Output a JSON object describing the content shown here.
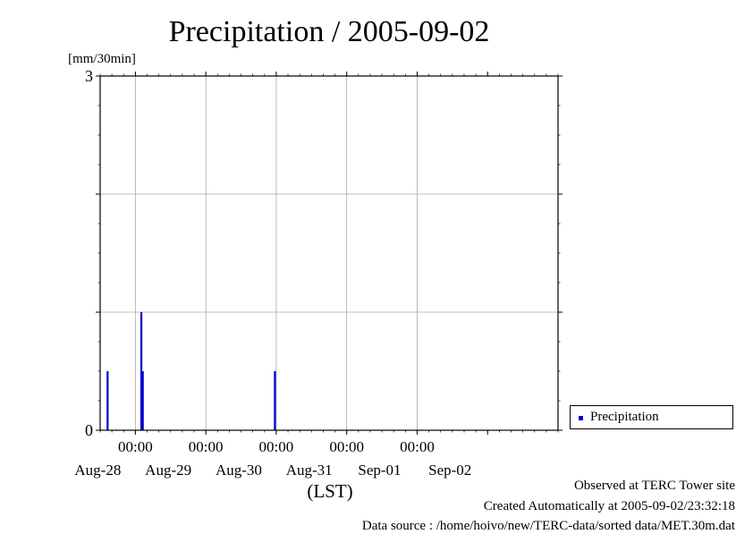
{
  "title": "Precipitation / 2005-09-02",
  "y_unit": "[mm/30min]",
  "x_unit": "(LST)",
  "legend": {
    "label": "Precipitation",
    "color": "#0000cc"
  },
  "footer": {
    "observed": "Observed at TERC Tower site",
    "created": "Created Automatically at 2005-09-02/23:32:18",
    "source": "Data source : /home/hoivo/new/TERC-data/sorted  data/MET.30m.dat"
  },
  "chart_data": {
    "type": "bar",
    "title": "Precipitation / 2005-09-02",
    "ylabel": "[mm/30min]",
    "xlabel": "(LST)",
    "ylim": [
      0,
      3
    ],
    "y_ticks": [
      {
        "value": 0,
        "label": "0"
      },
      {
        "value": 3,
        "label": "3"
      }
    ],
    "y_grid": [
      1,
      2
    ],
    "xlim": [
      "2005-08-27 12:00",
      "2005-09-02 24:00"
    ],
    "x_ticks": [
      {
        "time": "2005-08-28 00:00",
        "hour_label": "00:00",
        "date_label": "Aug-28"
      },
      {
        "time": "2005-08-29 00:00",
        "hour_label": "00:00",
        "date_label": "Aug-29"
      },
      {
        "time": "2005-08-30 00:00",
        "hour_label": "00:00",
        "date_label": "Aug-30"
      },
      {
        "time": "2005-08-31 00:00",
        "hour_label": "00:00",
        "date_label": "Aug-31"
      },
      {
        "time": "2005-09-01 00:00",
        "hour_label": "00:00",
        "date_label": "Sep-01"
      }
    ],
    "x_date_only_ticks": [
      {
        "time": "2005-09-02 00:00",
        "date_label": "Sep-02"
      }
    ],
    "grid": true,
    "legend_position": "right",
    "series": [
      {
        "name": "Precipitation",
        "color": "#0000cc",
        "points": [
          {
            "time": "2005-08-27 14:30",
            "value": 0.5
          },
          {
            "time": "2005-08-28 02:00",
            "value": 1.0
          },
          {
            "time": "2005-08-28 02:30",
            "value": 0.5
          },
          {
            "time": "2005-08-29 23:30",
            "value": 0.5
          }
        ]
      }
    ]
  }
}
